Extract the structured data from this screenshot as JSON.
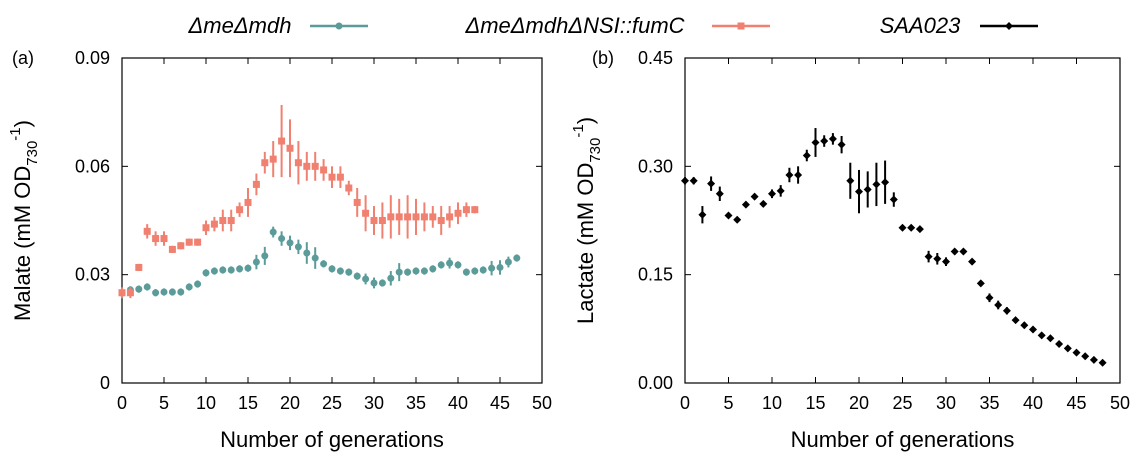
{
  "chart_data": [
    {
      "type": "scatter",
      "panel_label": "(a)",
      "xlabel": "Number of generations",
      "ylabel": [
        "Malate (mM OD",
        "730",
        "-1",
        ")"
      ],
      "xlim": [
        0,
        50
      ],
      "ylim": [
        0,
        0.09
      ],
      "xticks": [
        0,
        5,
        10,
        15,
        20,
        25,
        30,
        35,
        40,
        45,
        50
      ],
      "yticks": [
        0,
        0.03,
        0.06,
        0.09
      ],
      "series": [
        {
          "name": "ΔmeΔmdh",
          "color": "#5b9c9a",
          "marker": "circle",
          "x": [
            0,
            1,
            2,
            3,
            4,
            5,
            6,
            7,
            8,
            9,
            10,
            11,
            12,
            13,
            14,
            15,
            16,
            17,
            18,
            19,
            20,
            21,
            22,
            23,
            24,
            25,
            26,
            27,
            28,
            29,
            30,
            31,
            32,
            33,
            34,
            35,
            36,
            37,
            38,
            39,
            40,
            41,
            42,
            43,
            44,
            45,
            46,
            47
          ],
          "values": [
            0.0249,
            0.0258,
            0.026,
            0.0266,
            0.025,
            0.0252,
            0.0252,
            0.0252,
            0.0266,
            0.0274,
            0.0305,
            0.031,
            0.0313,
            0.0313,
            0.0316,
            0.0318,
            0.0335,
            0.0352,
            0.0418,
            0.04,
            0.0388,
            0.0377,
            0.036,
            0.0346,
            0.033,
            0.0316,
            0.031,
            0.0307,
            0.0296,
            0.0288,
            0.0277,
            0.0277,
            0.029,
            0.0307,
            0.0307,
            0.031,
            0.031,
            0.0316,
            0.0327,
            0.0332,
            0.0327,
            0.0307,
            0.031,
            0.0313,
            0.0318,
            0.032,
            0.0335,
            0.0346
          ],
          "errors": [
            0.0015,
            0.001,
            0.001,
            0.001,
            0.001,
            0.001,
            0.001,
            0.001,
            0.001,
            0.001,
            0.001,
            0.001,
            0.001,
            0.001,
            0.001,
            0.001,
            0.002,
            0.0025,
            0.0015,
            0.002,
            0.002,
            0.002,
            0.003,
            0.003,
            0.001,
            0.001,
            0.001,
            0.001,
            0.001,
            0.0015,
            0.0015,
            0.001,
            0.002,
            0.0025,
            0.001,
            0.001,
            0.001,
            0.001,
            0.001,
            0.0015,
            0.001,
            0.001,
            0.001,
            0.001,
            0.002,
            0.002,
            0.0015,
            0.001
          ]
        },
        {
          "name": "ΔmeΔmdhΔNSI::fumC",
          "color": "#f08070",
          "marker": "square",
          "x": [
            0,
            1,
            2,
            3,
            4,
            5,
            6,
            7,
            8,
            9,
            10,
            11,
            12,
            13,
            14,
            15,
            16,
            17,
            18,
            19,
            20,
            21,
            22,
            23,
            24,
            25,
            26,
            27,
            28,
            29,
            30,
            31,
            32,
            33,
            34,
            35,
            36,
            37,
            38,
            39,
            40,
            41,
            42
          ],
          "values": [
            0.025,
            0.025,
            0.032,
            0.042,
            0.04,
            0.04,
            0.037,
            0.038,
            0.039,
            0.039,
            0.043,
            0.044,
            0.045,
            0.045,
            0.048,
            0.05,
            0.055,
            0.061,
            0.062,
            0.067,
            0.065,
            0.061,
            0.06,
            0.06,
            0.059,
            0.057,
            0.057,
            0.054,
            0.05,
            0.047,
            0.045,
            0.045,
            0.046,
            0.046,
            0.046,
            0.046,
            0.046,
            0.046,
            0.045,
            0.046,
            0.047,
            0.048,
            0.048
          ],
          "errors": [
            0.0015,
            0.0015,
            0.001,
            0.002,
            0.002,
            0.002,
            0.001,
            0.001,
            0.001,
            0.001,
            0.002,
            0.002,
            0.003,
            0.003,
            0.002,
            0.004,
            0.003,
            0.003,
            0.005,
            0.01,
            0.008,
            0.006,
            0.004,
            0.004,
            0.003,
            0.003,
            0.003,
            0.002,
            0.004,
            0.005,
            0.004,
            0.005,
            0.006,
            0.005,
            0.006,
            0.005,
            0.004,
            0.003,
            0.004,
            0.003,
            0.003,
            0.002,
            0.001
          ]
        }
      ]
    },
    {
      "type": "scatter",
      "panel_label": "(b)",
      "xlabel": "Number of generations",
      "ylabel": [
        "Lactate (mM OD",
        "730",
        "-1",
        ")"
      ],
      "xlim": [
        0,
        50
      ],
      "ylim": [
        0,
        0.45
      ],
      "xticks": [
        0,
        5,
        10,
        15,
        20,
        25,
        30,
        35,
        40,
        45,
        50
      ],
      "yticks": [
        {
          "value": 0,
          "label": "0.00"
        },
        0.15,
        {
          "value": 0.3,
          "label": "0.30"
        },
        0.45
      ],
      "series": [
        {
          "name": "SAA023",
          "color": "#000000",
          "marker": "diamond",
          "x": [
            0,
            1,
            2,
            3,
            4,
            5,
            6,
            7,
            8,
            9,
            10,
            11,
            12,
            13,
            14,
            15,
            16,
            17,
            18,
            19,
            20,
            21,
            22,
            23,
            24,
            25,
            26,
            27,
            28,
            29,
            30,
            31,
            32,
            33,
            34,
            35,
            36,
            37,
            38,
            39,
            40,
            41,
            42,
            43,
            44,
            45,
            46,
            47,
            48
          ],
          "values": [
            0.28,
            0.28,
            0.233,
            0.276,
            0.262,
            0.232,
            0.226,
            0.247,
            0.258,
            0.248,
            0.262,
            0.266,
            0.288,
            0.288,
            0.315,
            0.333,
            0.335,
            0.338,
            0.33,
            0.28,
            0.265,
            0.268,
            0.275,
            0.278,
            0.254,
            0.215,
            0.215,
            0.213,
            0.175,
            0.172,
            0.168,
            0.182,
            0.182,
            0.168,
            0.138,
            0.118,
            0.108,
            0.1,
            0.087,
            0.08,
            0.074,
            0.066,
            0.062,
            0.054,
            0.048,
            0.042,
            0.037,
            0.032,
            0.028
          ],
          "errors": [
            0.005,
            0.005,
            0.012,
            0.01,
            0.01,
            0.003,
            0.003,
            0.004,
            0.004,
            0.003,
            0.006,
            0.008,
            0.01,
            0.012,
            0.008,
            0.02,
            0.008,
            0.008,
            0.012,
            0.025,
            0.03,
            0.025,
            0.03,
            0.03,
            0.01,
            0.003,
            0.003,
            0.003,
            0.008,
            0.008,
            0.006,
            0.003,
            0.003,
            0.004,
            0.003,
            0.006,
            0.006,
            0.005,
            0.004,
            0.004,
            0.003,
            0.003,
            0.004,
            0.003,
            0.003,
            0.003,
            0.003,
            0.003,
            0.003
          ]
        }
      ]
    }
  ]
}
